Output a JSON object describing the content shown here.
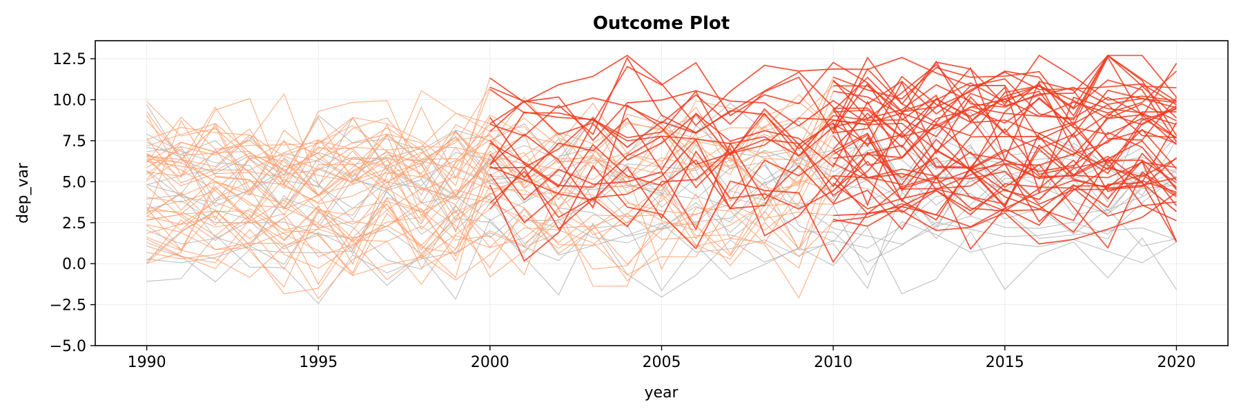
{
  "chart_data": {
    "type": "line",
    "title": "Outcome Plot",
    "xlabel": "year",
    "ylabel": "dep_var",
    "xlim": [
      1988.5,
      2021.5
    ],
    "ylim": [
      -5.0,
      13.6
    ],
    "x_ticks": [
      1990,
      1995,
      2000,
      2005,
      2010,
      2015,
      2020
    ],
    "y_ticks": [
      -5.0,
      -2.5,
      0.0,
      2.5,
      5.0,
      7.5,
      10.0,
      12.5
    ],
    "x_tick_labels": [
      "1990",
      "1995",
      "2000",
      "2005",
      "2010",
      "2015",
      "2020"
    ],
    "y_tick_labels": [
      "−5.0",
      "−2.5",
      "0.0",
      "2.5",
      "5.0",
      "7.5",
      "10.0",
      "12.5"
    ],
    "grid": true,
    "colors": {
      "never_treated": "#b3b3b3",
      "pre_treatment": "#ffa474",
      "post_treatment": "#f03b20"
    },
    "generator": {
      "units": 60,
      "start_year": 1990,
      "end_year": 2020,
      "seed": 42
    }
  }
}
